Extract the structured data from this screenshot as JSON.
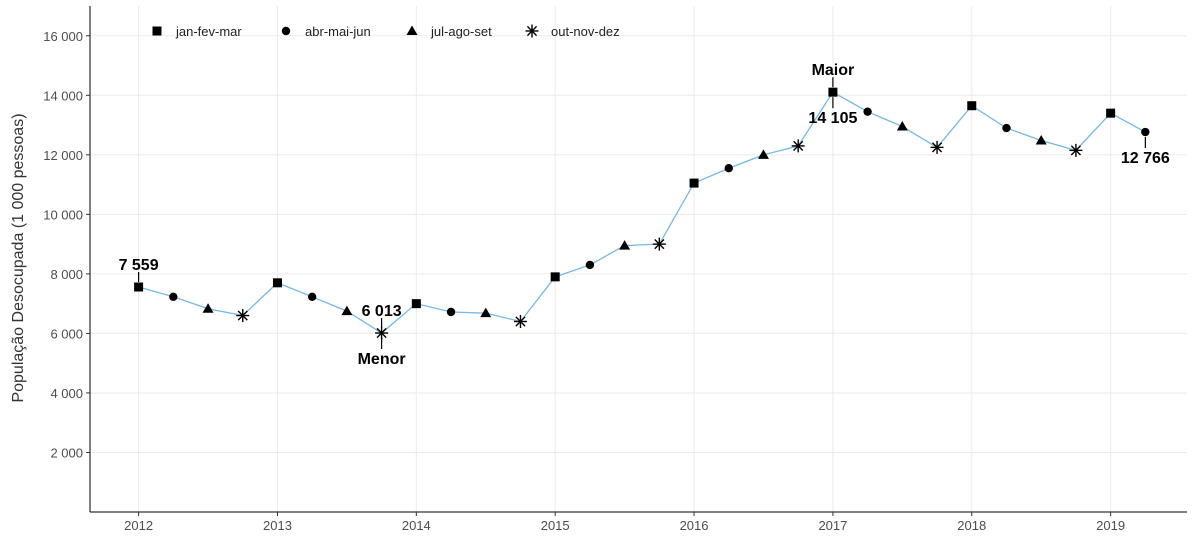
{
  "chart_data": {
    "type": "line",
    "title": "",
    "xlabel": "",
    "ylabel": "População Desocupada (1 000 pessoas)",
    "x_ticks": [
      "2012",
      "2013",
      "2014",
      "2015",
      "2016",
      "2017",
      "2018",
      "2019"
    ],
    "y_ticks": [
      "2 000",
      "4 000",
      "6 000",
      "8 000",
      "10 000",
      "12 000",
      "14 000",
      "16 000"
    ],
    "ylim": [
      0,
      17000
    ],
    "xlim": [
      2011.65,
      2019.55
    ],
    "grid": true,
    "legend_position": "top-left",
    "line_color": "#74b9e8",
    "legend": [
      {
        "label": "jan-fev-mar",
        "marker": "square"
      },
      {
        "label": "abr-mai-jun",
        "marker": "circle"
      },
      {
        "label": "jul-ago-set",
        "marker": "triangle"
      },
      {
        "label": "out-nov-dez",
        "marker": "asterisk"
      }
    ],
    "points": [
      {
        "x": 2012.0,
        "y": 7559,
        "m": "square"
      },
      {
        "x": 2012.25,
        "y": 7230,
        "m": "circle"
      },
      {
        "x": 2012.5,
        "y": 6830,
        "m": "triangle"
      },
      {
        "x": 2012.75,
        "y": 6600,
        "m": "asterisk"
      },
      {
        "x": 2013.0,
        "y": 7700,
        "m": "square"
      },
      {
        "x": 2013.25,
        "y": 7230,
        "m": "circle"
      },
      {
        "x": 2013.5,
        "y": 6750,
        "m": "triangle"
      },
      {
        "x": 2013.75,
        "y": 6013,
        "m": "asterisk"
      },
      {
        "x": 2014.0,
        "y": 7000,
        "m": "square"
      },
      {
        "x": 2014.25,
        "y": 6720,
        "m": "circle"
      },
      {
        "x": 2014.5,
        "y": 6680,
        "m": "triangle"
      },
      {
        "x": 2014.75,
        "y": 6400,
        "m": "asterisk"
      },
      {
        "x": 2015.0,
        "y": 7900,
        "m": "square"
      },
      {
        "x": 2015.25,
        "y": 8300,
        "m": "circle"
      },
      {
        "x": 2015.5,
        "y": 8950,
        "m": "triangle"
      },
      {
        "x": 2015.75,
        "y": 9000,
        "m": "asterisk"
      },
      {
        "x": 2016.0,
        "y": 11050,
        "m": "square"
      },
      {
        "x": 2016.25,
        "y": 11550,
        "m": "circle"
      },
      {
        "x": 2016.5,
        "y": 12000,
        "m": "triangle"
      },
      {
        "x": 2016.75,
        "y": 12300,
        "m": "asterisk"
      },
      {
        "x": 2017.0,
        "y": 14105,
        "m": "square"
      },
      {
        "x": 2017.25,
        "y": 13450,
        "m": "circle"
      },
      {
        "x": 2017.5,
        "y": 12950,
        "m": "triangle"
      },
      {
        "x": 2017.75,
        "y": 12250,
        "m": "asterisk"
      },
      {
        "x": 2018.0,
        "y": 13650,
        "m": "square"
      },
      {
        "x": 2018.25,
        "y": 12900,
        "m": "circle"
      },
      {
        "x": 2018.5,
        "y": 12480,
        "m": "triangle"
      },
      {
        "x": 2018.75,
        "y": 12150,
        "m": "asterisk"
      },
      {
        "x": 2019.0,
        "y": 13400,
        "m": "square"
      },
      {
        "x": 2019.25,
        "y": 12766,
        "m": "circle"
      }
    ],
    "annotations": [
      {
        "text": "7 559",
        "x": 2012.0,
        "y": 7559,
        "pos": "above"
      },
      {
        "text": "6 013",
        "x": 2013.75,
        "y": 6013,
        "pos": "above"
      },
      {
        "text": "Menor",
        "x": 2013.75,
        "y": 6013,
        "pos": "below"
      },
      {
        "text": "Maior",
        "x": 2017.0,
        "y": 14105,
        "pos": "above"
      },
      {
        "text": "14 105",
        "x": 2017.0,
        "y": 14105,
        "pos": "below"
      },
      {
        "text": "12 766",
        "x": 2019.25,
        "y": 12766,
        "pos": "below"
      }
    ]
  }
}
